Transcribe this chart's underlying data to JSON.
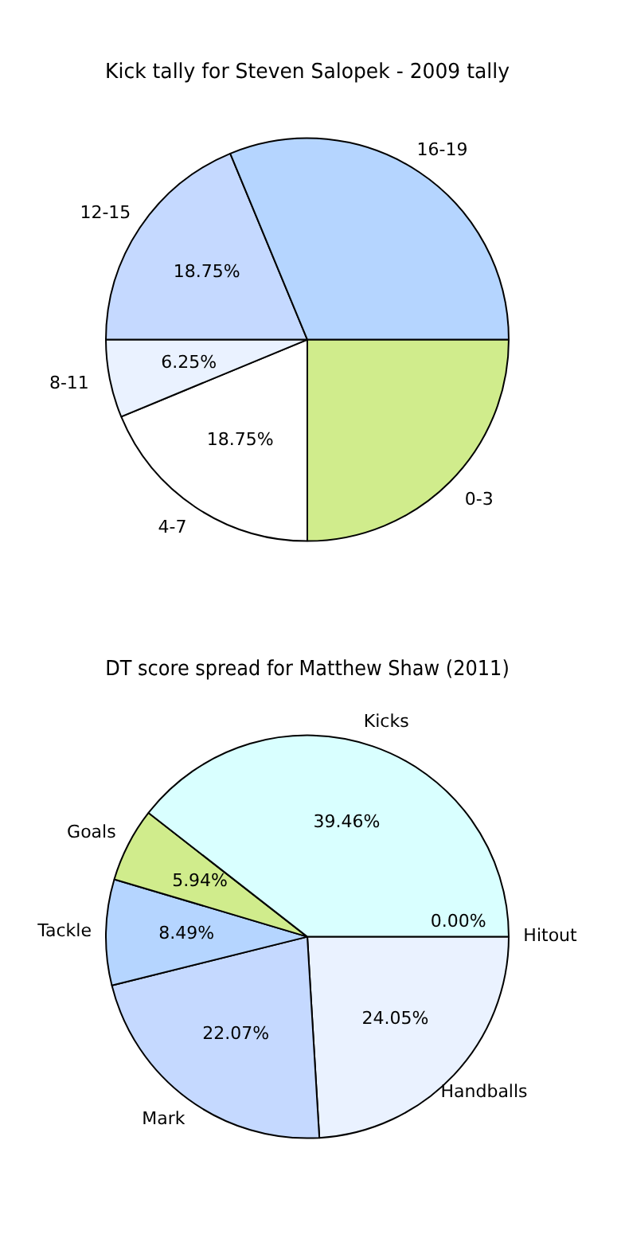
{
  "chart_data": [
    {
      "type": "pie",
      "title": "Kick tally for Steven Salopek - 2009 tally",
      "categories": [
        "0-3",
        "4-7",
        "8-11",
        "12-15",
        "16-19"
      ],
      "values": [
        25,
        18.75,
        6.25,
        18.75,
        31.25
      ],
      "colors": [
        "#d0ec8c",
        "#ffffff",
        "#eaf2ff",
        "#c5d9ff",
        "#b5d5ff"
      ],
      "value_labels": [
        null,
        "18.75%",
        "6.25%",
        "18.75%",
        null
      ],
      "legend": false
    },
    {
      "type": "pie",
      "title": "DT score spread for Matthew Shaw (2011)",
      "categories": [
        "Hitout",
        "Handballs",
        "Mark",
        "Tackle",
        "Goals",
        "Kicks"
      ],
      "values": [
        0,
        24.05,
        22.07,
        8.49,
        5.94,
        39.46
      ],
      "colors": [
        "#ffffff",
        "#eaf2ff",
        "#c5d9ff",
        "#b5d5ff",
        "#d0ec8c",
        "#d9ffff"
      ],
      "value_labels": [
        "0.00%",
        "24.05%",
        "22.07%",
        "8.49%",
        "5.94%",
        "39.46%"
      ],
      "legend": false
    }
  ]
}
